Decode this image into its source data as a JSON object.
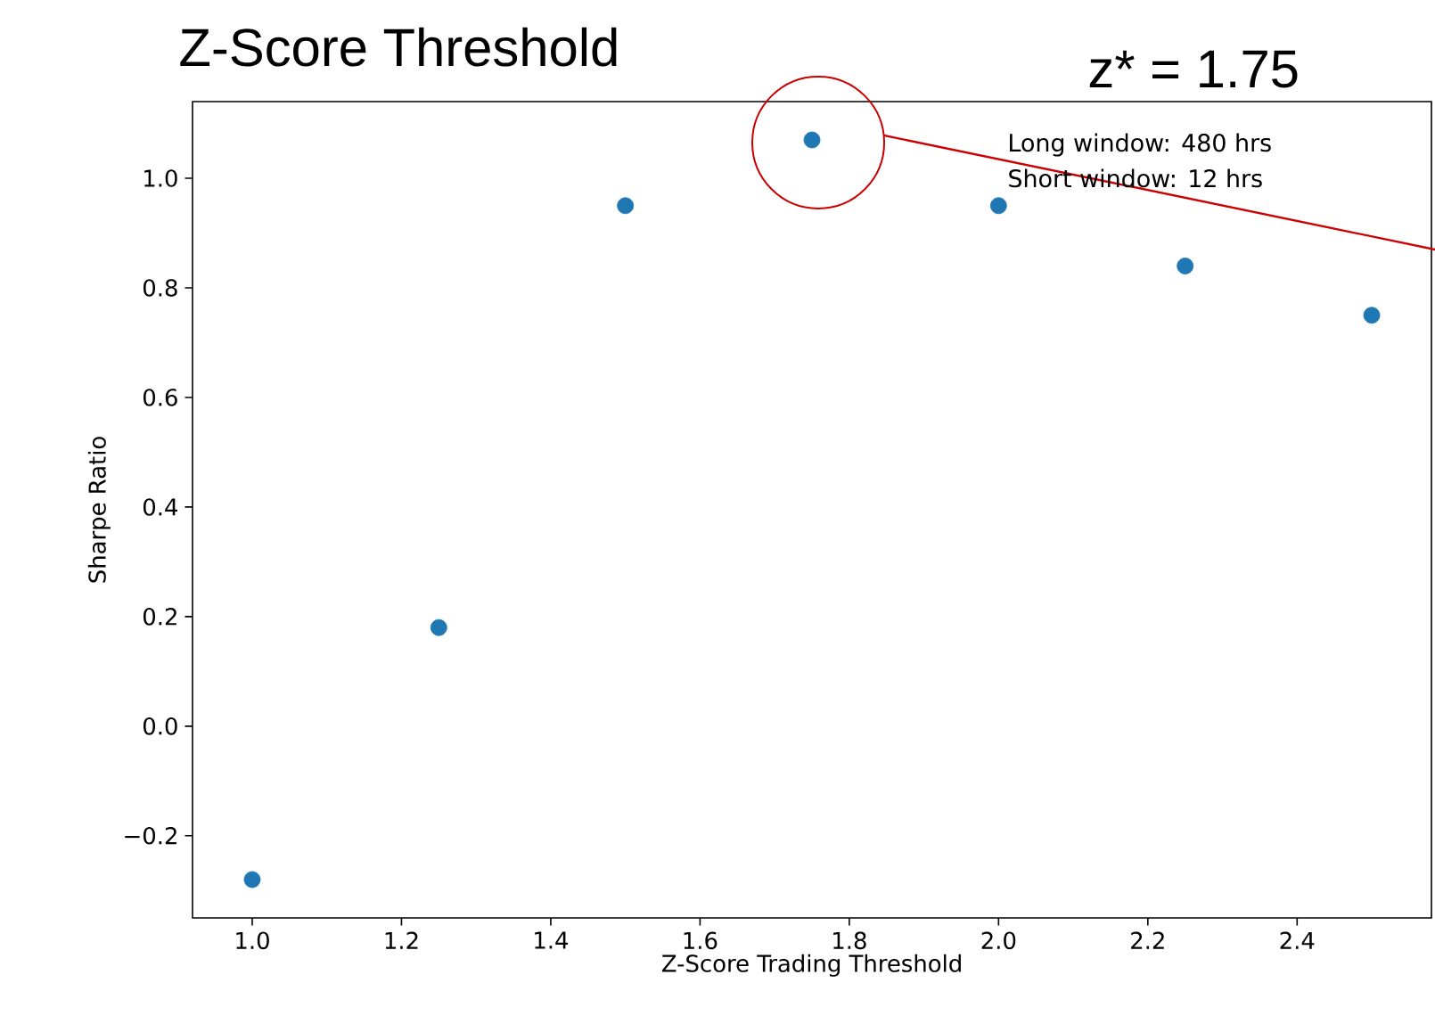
{
  "chart_data": {
    "type": "scatter",
    "title": "Z-Score Threshold",
    "xlabel": "Z-Score Trading Threshold",
    "ylabel": "Sharpe Ratio",
    "x": [
      1.0,
      1.25,
      1.5,
      1.75,
      2.0,
      2.25,
      2.5
    ],
    "series": [
      {
        "color": "#1f77b4",
        "values": [
          -0.28,
          0.18,
          0.95,
          1.07,
          0.95,
          0.84,
          0.75
        ]
      }
    ],
    "marker": "circle",
    "xlim": [
      0.92,
      2.58
    ],
    "xticks": [
      {
        "value": 1.0,
        "label": "1.0"
      },
      {
        "value": 1.2,
        "label": "1.2"
      },
      {
        "value": 1.4,
        "label": "1.4"
      },
      {
        "value": 1.6,
        "label": "1.6"
      },
      {
        "value": 1.8,
        "label": "1.8"
      },
      {
        "value": 2.0,
        "label": "2.0"
      },
      {
        "value": 2.2,
        "label": "2.2"
      },
      {
        "value": 2.4,
        "label": "2.4"
      }
    ],
    "ylim": [
      -0.35,
      1.14
    ],
    "yticks": [
      {
        "value": -0.2,
        "label": "−0.2"
      },
      {
        "value": 0.0,
        "label": "0.0"
      },
      {
        "value": 0.2,
        "label": "0.2"
      },
      {
        "value": 0.4,
        "label": "0.4"
      },
      {
        "value": 0.6,
        "label": "0.6"
      },
      {
        "value": 0.8,
        "label": "0.8"
      },
      {
        "value": 1.0,
        "label": "1.0"
      }
    ],
    "annotations": [
      "z* = 1.75",
      "Long window: 480 hrs",
      "Short window: 12 hrs"
    ]
  }
}
